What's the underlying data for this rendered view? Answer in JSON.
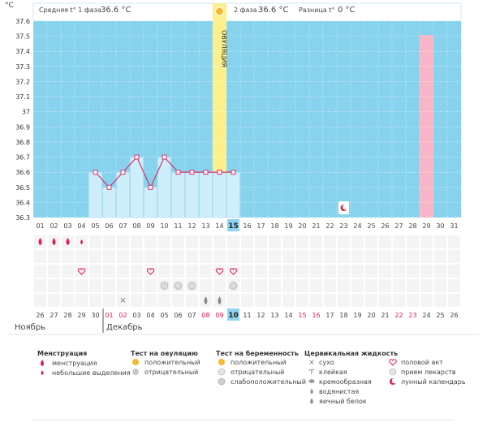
{
  "header": {
    "temp_unit": "°C",
    "phase1_label": "Средняя t° 1 фаза",
    "phase1_value": "36.6 °C",
    "phase2_label": "2 фаза",
    "phase2_value": "36.6 °C",
    "diff_label": "Разница t°",
    "diff_value": "0 °C",
    "ovulation_label": "ОВУЛЯЦИЯ"
  },
  "y_ticks": [
    "37.6",
    "37.5",
    "37.4",
    "37.3",
    "37.2",
    "37.1",
    "37",
    "36.9",
    "36.8",
    "36.7",
    "36.6",
    "36.5",
    "36.4",
    "36.3"
  ],
  "cycle_days_phase2": [
    "01",
    "02",
    "03",
    "04",
    "05",
    "06",
    "07",
    "08",
    "09",
    "10",
    "11",
    "12",
    "13",
    "14",
    "15",
    "16",
    "17"
  ],
  "cycle_days_bottom": [
    "01",
    "02",
    "03",
    "04",
    "05",
    "06",
    "07",
    "08",
    "09",
    "10",
    "11",
    "12",
    "13",
    "14",
    "15",
    "16",
    "17",
    "18",
    "19",
    "20",
    "21",
    "22",
    "23",
    "24",
    "25",
    "26",
    "27",
    "28",
    "29",
    "30",
    "31"
  ],
  "cycle_days_highlight": "15",
  "calendar_dates": [
    "26",
    "27",
    "28",
    "29",
    "30",
    "01",
    "02",
    "03",
    "04",
    "05",
    "06",
    "07",
    "08",
    "09",
    "10",
    "11",
    "12",
    "15",
    "16",
    "17",
    "18",
    "19",
    "20",
    "21",
    "22",
    "23",
    "24",
    "25",
    "26"
  ],
  "calendar_dates_full": [
    "26",
    "27",
    "28",
    "29",
    "30",
    "01",
    "02",
    "03",
    "04",
    "05",
    "06",
    "07",
    "08",
    "09",
    "10",
    "11",
    "12",
    "13",
    "14",
    "15",
    "16",
    "17",
    "18",
    "19",
    "20",
    "21",
    "22",
    "23",
    "24",
    "25",
    "26"
  ],
  "months": {
    "left": "Ноябрь",
    "right": "Декабрь"
  },
  "calendar_highlight": "10",
  "chart_data": {
    "type": "line",
    "x": [
      5,
      6,
      7,
      8,
      9,
      10,
      11,
      12,
      13,
      14,
      15
    ],
    "y": [
      36.6,
      36.5,
      36.6,
      36.7,
      36.5,
      36.7,
      36.6,
      36.6,
      36.6,
      36.6,
      36.6
    ],
    "ylim": [
      36.3,
      37.6
    ],
    "ovulation_day": 14,
    "highlight_day": 29
  },
  "legend": {
    "menstruation": {
      "title": "Менструация",
      "items": [
        "менструация",
        "небольшие выделения"
      ]
    },
    "ovulation_test": {
      "title": "Тест на овуляцию",
      "items": [
        "положительный",
        "отрицательный"
      ]
    },
    "pregnancy_test": {
      "title": "Тест на беременность",
      "items": [
        "положительный",
        "отрицательный",
        "слабоположительный"
      ]
    },
    "cervical": {
      "title": "Цервикальная жидкость",
      "items": [
        "сухо",
        "клейкая",
        "кремообразная",
        "водянистая",
        "яичный белок"
      ]
    },
    "other": {
      "items": [
        "половой акт",
        "прием лекарств",
        "лунный календарь"
      ]
    }
  },
  "colors": {
    "sky": "#87d3ee",
    "ovulation": "#fbf08c",
    "pink": "#f7b6c8",
    "bar": "#cfeefb",
    "line": "#d6336c",
    "red_text": "#e0204a",
    "highlight": "#8fd3ee"
  }
}
